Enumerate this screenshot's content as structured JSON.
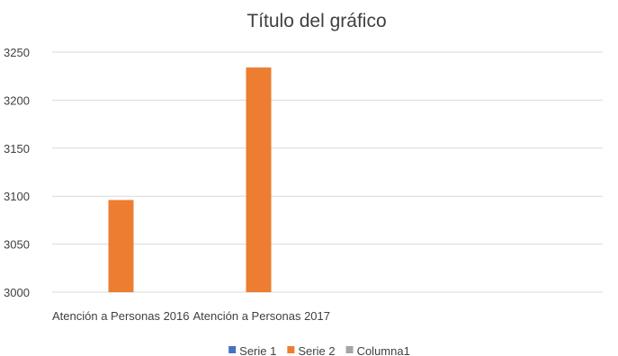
{
  "chart_data": {
    "type": "bar",
    "title": "Título del gráfico",
    "categories": [
      "Atención a Personas 2016",
      "Atención a Personas 2017",
      "",
      ""
    ],
    "series": [
      {
        "name": "Serie 1",
        "color": "#4472C4",
        "values": [
          null,
          null,
          null,
          null
        ]
      },
      {
        "name": "Serie 2",
        "color": "#ED7D31",
        "values": [
          3096,
          3234,
          null,
          null
        ]
      },
      {
        "name": "Columna1",
        "color": "#A5A5A5",
        "values": [
          null,
          null,
          null,
          null
        ]
      }
    ],
    "ylim": [
      3000,
      3250
    ],
    "yticks": [
      "3000",
      "3050",
      "3100",
      "3150",
      "3200",
      "3250"
    ],
    "grid": true,
    "legend": "bottom"
  }
}
